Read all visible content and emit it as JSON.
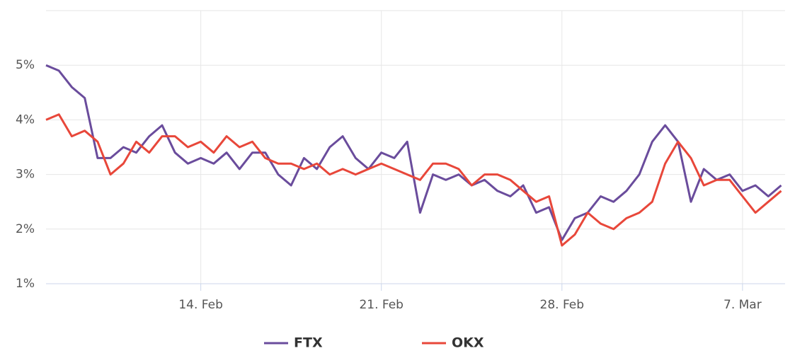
{
  "chart_data": {
    "type": "line",
    "x": [
      39,
      39.5,
      40,
      40.5,
      41,
      41.5,
      42,
      42.5,
      43,
      43.5,
      44,
      44.5,
      45,
      45.5,
      46,
      46.5,
      47,
      47.5,
      48,
      48.5,
      49,
      49.5,
      50,
      50.5,
      51,
      51.5,
      52,
      52.5,
      53,
      53.5,
      54,
      54.5,
      55,
      55.5,
      56,
      56.5,
      57,
      57.5,
      58,
      58.5,
      59,
      59.5,
      60,
      60.5,
      61,
      61.5,
      62,
      62.5,
      63,
      63.5,
      64,
      64.5,
      65,
      65.5,
      66,
      66.5,
      67,
      67.5
    ],
    "series": [
      {
        "name": "FTX",
        "color": "#6a4c9c",
        "values": [
          5.0,
          4.9,
          4.6,
          4.4,
          3.3,
          3.3,
          3.5,
          3.4,
          3.7,
          3.9,
          3.4,
          3.2,
          3.3,
          3.2,
          3.4,
          3.1,
          3.4,
          3.4,
          3.0,
          2.8,
          3.3,
          3.1,
          3.5,
          3.7,
          3.3,
          3.1,
          3.4,
          3.3,
          3.6,
          2.3,
          3.0,
          2.9,
          3.0,
          2.8,
          2.9,
          2.7,
          2.6,
          2.8,
          2.3,
          2.4,
          1.8,
          2.2,
          2.3,
          2.6,
          2.5,
          2.7,
          3.0,
          3.6,
          3.9,
          3.6,
          2.5,
          3.1,
          2.9,
          3.0,
          2.7,
          2.8,
          2.6,
          2.8
        ]
      },
      {
        "name": "OKX",
        "color": "#e8473a",
        "values": [
          4.0,
          4.1,
          3.7,
          3.8,
          3.6,
          3.0,
          3.2,
          3.6,
          3.4,
          3.7,
          3.7,
          3.5,
          3.6,
          3.4,
          3.7,
          3.5,
          3.6,
          3.3,
          3.2,
          3.2,
          3.1,
          3.2,
          3.0,
          3.1,
          3.0,
          3.1,
          3.2,
          3.1,
          3.0,
          2.9,
          3.2,
          3.2,
          3.1,
          2.8,
          3.0,
          3.0,
          2.9,
          2.7,
          2.5,
          2.6,
          1.7,
          1.9,
          2.3,
          2.1,
          2.0,
          2.2,
          2.3,
          2.5,
          3.2,
          3.6,
          3.3,
          2.8,
          2.9,
          2.9,
          2.6,
          2.3,
          2.5,
          2.7
        ]
      }
    ],
    "xlim": [
      39,
      67.65
    ],
    "xticks": [
      {
        "value": 45,
        "label": "14. Feb"
      },
      {
        "value": 52,
        "label": "21. Feb"
      },
      {
        "value": 59,
        "label": "28. Feb"
      },
      {
        "value": 66,
        "label": "7. Mar"
      }
    ],
    "ylim": [
      1,
      6
    ],
    "yticks": [
      {
        "value": 1,
        "label": "1%"
      },
      {
        "value": 2,
        "label": "2%"
      },
      {
        "value": 3,
        "label": "3%"
      },
      {
        "value": 4,
        "label": "4%"
      },
      {
        "value": 5,
        "label": "5%"
      }
    ],
    "grid": true
  }
}
